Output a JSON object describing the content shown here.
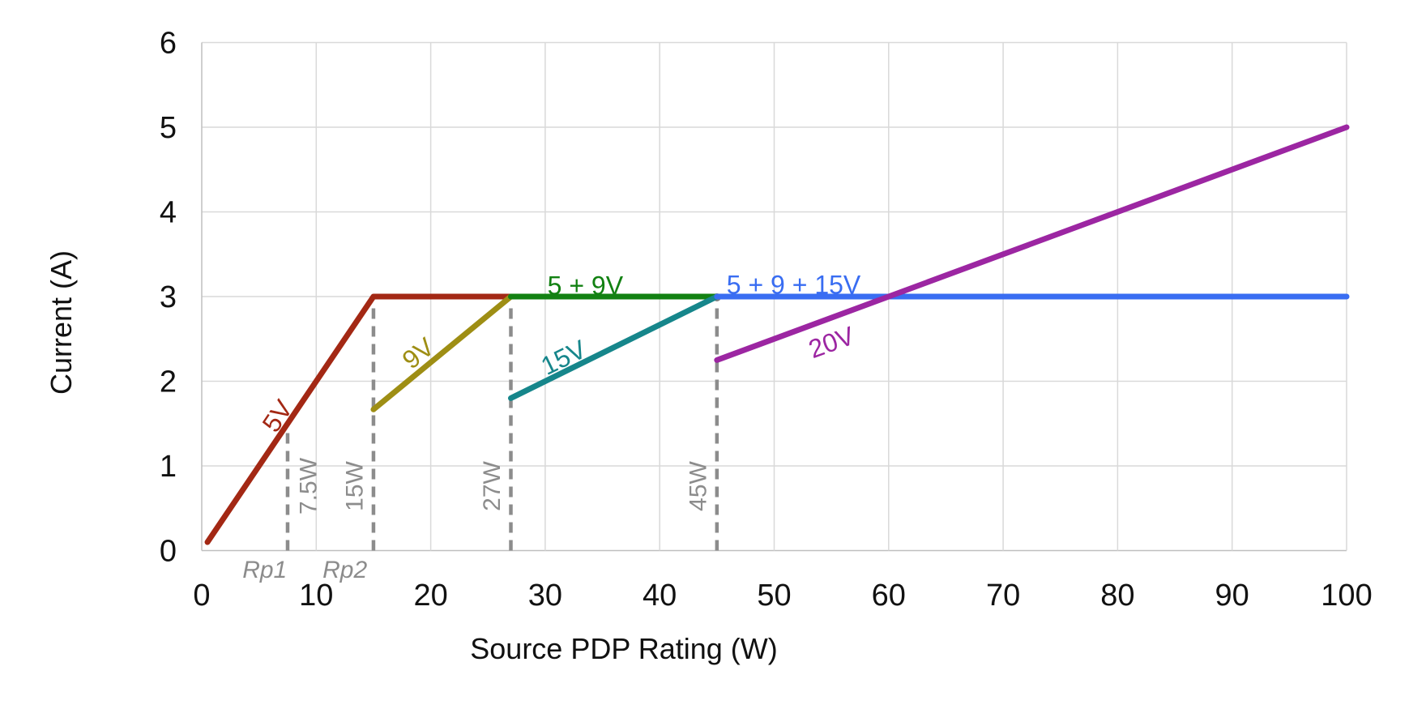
{
  "chart_data": {
    "type": "line",
    "title": "",
    "xlabel": "Source PDP Rating (W)",
    "ylabel": "Current (A)",
    "xlim": [
      0,
      100
    ],
    "ylim": [
      0,
      6
    ],
    "xticks": [
      0,
      10,
      20,
      30,
      40,
      50,
      60,
      70,
      80,
      90,
      100
    ],
    "yticks": [
      0,
      1,
      2,
      3,
      4,
      5,
      6
    ],
    "grid": true,
    "legend_position": "none",
    "series": [
      {
        "name": "5V",
        "color": "#A32814",
        "points": [
          [
            0.5,
            0.1
          ],
          [
            15,
            3
          ],
          [
            27,
            3
          ]
        ]
      },
      {
        "name": "9V",
        "color": "#9E8E14",
        "points": [
          [
            15,
            1.667
          ],
          [
            27,
            3
          ]
        ]
      },
      {
        "name": "5 + 9V",
        "color": "#128112",
        "points": [
          [
            27,
            3
          ],
          [
            45,
            3
          ]
        ]
      },
      {
        "name": "15V",
        "color": "#16868B",
        "points": [
          [
            27,
            1.8
          ],
          [
            45,
            3
          ]
        ]
      },
      {
        "name": "5 + 9 + 15V",
        "color": "#396DF2",
        "points": [
          [
            45,
            3
          ],
          [
            100,
            3
          ]
        ]
      },
      {
        "name": "20V",
        "color": "#9C26A2",
        "points": [
          [
            45,
            2.25
          ],
          [
            100,
            5
          ]
        ]
      }
    ],
    "annotations": {
      "power_thresholds": [
        {
          "label": "7.5W",
          "watts": 7.5,
          "top_amps": 1.5,
          "label_side": "right",
          "dot": false
        },
        {
          "label": "15W",
          "watts": 15,
          "top_amps": 3,
          "label_side": "left",
          "dot": false
        },
        {
          "label": "27W",
          "watts": 27,
          "top_amps": 3,
          "label_side": "left",
          "dot": false
        },
        {
          "label": "45W",
          "watts": 45,
          "top_amps": 3,
          "label_side": "left",
          "dot": true
        }
      ],
      "rp_labels": [
        {
          "label": "Rp1",
          "watts": 5.5
        },
        {
          "label": "Rp2",
          "watts": 12.5
        }
      ],
      "series_labels": [
        {
          "text": "5V",
          "w": 6.6,
          "a": 1.59,
          "angle": -56,
          "color": "#A32814"
        },
        {
          "text": "9V",
          "w": 18.9,
          "a": 2.33,
          "angle": -39,
          "color": "#9E8E14"
        },
        {
          "text": "15V",
          "w": 31.6,
          "a": 2.28,
          "angle": -26,
          "color": "#16868B"
        },
        {
          "text": "20V",
          "w": 55.0,
          "a": 2.46,
          "angle": -20,
          "color": "#9C26A2"
        },
        {
          "text": "5 + 9V",
          "w": 33.5,
          "a": 3.13,
          "angle": 0,
          "color": "#128112"
        },
        {
          "text": "5 + 9 + 15V",
          "w": 51.7,
          "a": 3.14,
          "angle": 0,
          "color": "#396DF2"
        }
      ]
    },
    "colors": {
      "grid": "#D9D9D9",
      "axis": "#BFBFBF",
      "tick_text": "#111111",
      "threshold_gray": "#8C8C8C",
      "marker_dot": "#7F7F7F",
      "background": "#FFFFFF"
    }
  }
}
